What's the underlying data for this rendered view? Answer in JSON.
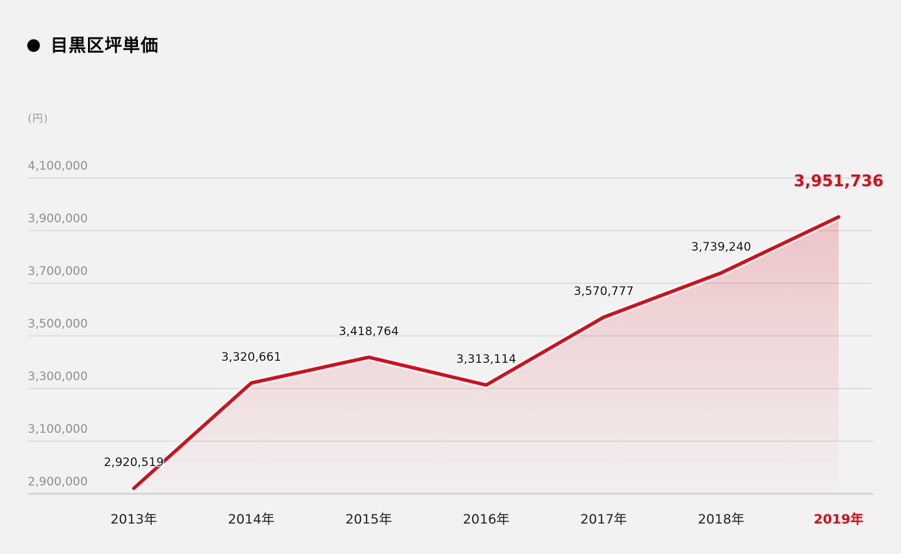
{
  "header": {
    "bullet_icon": "●",
    "title": "目黒区坪単価"
  },
  "chart_data": {
    "type": "area",
    "title": "目黒区坪単価",
    "unit_label": "(円)",
    "xlabel": "",
    "ylabel": "(円)",
    "categories": [
      "2013年",
      "2014年",
      "2015年",
      "2016年",
      "2017年",
      "2018年",
      "2019年"
    ],
    "values": [
      2920519,
      3320661,
      3418764,
      3313114,
      3570777,
      3739240,
      3951736
    ],
    "value_labels": [
      "2,920,519",
      "3,320,661",
      "3,418,764",
      "3,313,114",
      "3,570,777",
      "3,739,240",
      "3,951,736"
    ],
    "y_ticks": [
      2900000,
      3100000,
      3300000,
      3500000,
      3700000,
      3900000,
      4100000
    ],
    "y_tick_labels": [
      "2,900,000",
      "3,100,000",
      "3,300,000",
      "3,500,000",
      "3,700,000",
      "3,900,000",
      "4,100,000"
    ],
    "ylim": [
      2900000,
      4100000
    ],
    "grid": true,
    "legend": false,
    "highlight_last_index": 6,
    "colors": {
      "background": "#f2f2f2",
      "line": "#d70c18",
      "line_halo": "#ffffff",
      "area_top": "rgba(215, 12, 24, 0.20)",
      "area_bottom": "rgba(215, 12, 24, 0.01)",
      "gridline": "#dfdfdf",
      "axis_line": "#d6d6d6",
      "y_tick_text": "#8f8f8f",
      "x_tick_text": "#222222",
      "data_label_text": "#111111",
      "highlight_text": "#d70c18"
    }
  }
}
